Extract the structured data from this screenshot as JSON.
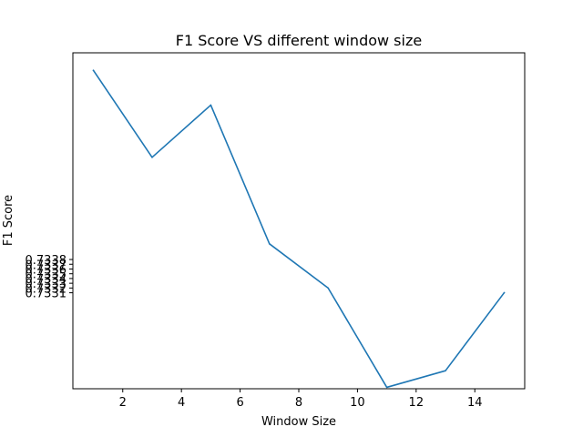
{
  "chart_data": {
    "type": "line",
    "title": "F1 Score VS different window size",
    "xlabel": "Window Size",
    "ylabel": "F1 Score",
    "xlim": [
      0.3,
      15.7
    ],
    "ylim": [
      0.73108,
      0.73815
    ],
    "xticks": [
      2,
      4,
      6,
      8,
      10,
      12,
      14
    ],
    "yticks": [
      0.7331,
      0.7332,
      0.7333,
      0.7334,
      0.7335,
      0.7336,
      0.7337,
      0.7338
    ],
    "ytick_labels": [
      "0.7331",
      "0.7332",
      "0.7333",
      "0.7334",
      "0.7335",
      "0.7336",
      "0.7337",
      "0.7338"
    ],
    "grid": false,
    "series": [
      {
        "x": [
          1,
          3,
          5,
          7,
          9,
          11,
          13,
          15
        ],
        "y": [
          0.73778,
          0.73595,
          0.73705,
          0.73413,
          0.7332,
          0.73111,
          0.73146,
          0.7331
        ],
        "color": "#1f77b4"
      }
    ]
  }
}
